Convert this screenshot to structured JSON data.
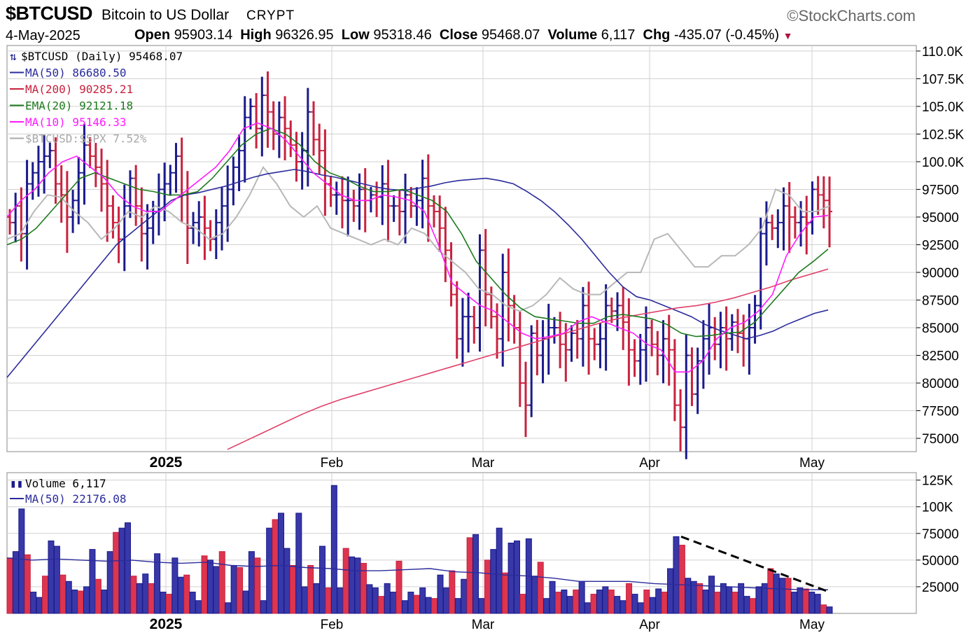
{
  "header": {
    "symbol": "$BTCUSD",
    "name": "Bitcoin to US Dollar",
    "exchange": "CRYPT",
    "brand": "©StockCharts.com",
    "date": "4-May-2025",
    "open_label": "Open",
    "open": "95903.14",
    "high_label": "High",
    "high": "96326.95",
    "low_label": "Low",
    "low": "95318.46",
    "close_label": "Close",
    "close": "95468.07",
    "volume_label": "Volume",
    "volume": "6,117",
    "chg_label": "Chg",
    "chg": "-435.07 (-0.45%)"
  },
  "colors": {
    "up": "#1a1a8c",
    "down": "#c8223e",
    "ma50": "#2b2b9c",
    "ma200": "#e0406a",
    "ema20": "#1e7a1e",
    "ma10": "#ff1aff",
    "ratio": "#b8b8b8",
    "grid": "#d0d0d0"
  },
  "legend_price": [
    {
      "text": "$BTCUSD (Daily) 95468.07",
      "color": "#000000",
      "icon": "candlestick-icon"
    },
    {
      "text": "MA(50) 86680.50",
      "color": "#2b2b9c"
    },
    {
      "text": "MA(200) 90285.21",
      "color": "#c8223e"
    },
    {
      "text": "EMA(20) 92121.18",
      "color": "#1e7a1e"
    },
    {
      "text": "MA(10) 95146.33",
      "color": "#ff1aff"
    },
    {
      "text": "$BTCUSD:$SPX 7.52%",
      "color": "#a8a8a8"
    }
  ],
  "legend_volume": [
    {
      "text": "Volume 6,117",
      "color": "#000000",
      "icon": "volume-bars-icon"
    },
    {
      "text": "MA(50) 22176.08",
      "color": "#2b2b9c"
    }
  ],
  "chart_data": [
    {
      "type": "line",
      "title": "$BTCUSD (Daily)",
      "y_ticks": [
        "110.0K",
        "107.5K",
        "105.0K",
        "102.5K",
        "100.0K",
        "97500",
        "95000",
        "92500",
        "90000",
        "87500",
        "85000",
        "82500",
        "80000",
        "77500",
        "75000"
      ],
      "x_ticks": [
        "2025",
        "Feb",
        "Mar",
        "Apr",
        "May"
      ],
      "ylim": [
        74000,
        110500
      ],
      "grid": true,
      "ohlc_close_approx": [
        94500,
        96000,
        93500,
        98000,
        99000,
        100000,
        100500,
        101000,
        98000,
        97000,
        95000,
        96500,
        99000,
        101500,
        100500,
        99500,
        98000,
        96000,
        94500,
        93000,
        96000,
        98500,
        96000,
        93500,
        94000,
        95500,
        97500,
        98000,
        99000,
        100500,
        97000,
        94000,
        94500,
        95000,
        94000,
        93000,
        94500,
        96000,
        97500,
        99500,
        101000,
        104000,
        105000,
        103000,
        106000,
        104500,
        102500,
        104000,
        103000,
        101500,
        100000,
        101000,
        104500,
        102000,
        101000,
        98000,
        97000,
        97000,
        96500,
        96500,
        96000,
        97500,
        96500,
        97000,
        96800,
        98000,
        96000,
        96000,
        95500,
        97000,
        96000,
        96500,
        98500,
        96000,
        95500,
        94000,
        92000,
        88000,
        84000,
        86000,
        86000,
        85000,
        92000,
        88000,
        86000,
        84000,
        90000,
        87000,
        85000,
        80000,
        78000,
        84500,
        82500,
        84000,
        85000,
        85000,
        83500,
        83000,
        84500,
        84000,
        87000,
        84000,
        83500,
        84000,
        87000,
        86500,
        87000,
        85500,
        83000,
        82000,
        83000,
        85000,
        83500,
        82500,
        84000,
        83000,
        78000,
        76000,
        82500,
        79000,
        82000,
        84000,
        85000,
        83500,
        85000,
        84000,
        85500,
        84500,
        84000,
        85000,
        87000,
        93500,
        94500,
        94000,
        94500,
        96000,
        95000,
        94500,
        95000,
        94500,
        97500,
        97000,
        96500,
        95500
      ],
      "series": [
        {
          "name": "MA(50)",
          "values": [
            80500,
            82000,
            83500,
            85000,
            86500,
            88000,
            89500,
            91000,
            92500,
            93500,
            94500,
            95500,
            96500,
            97000,
            97200,
            97500,
            97800,
            98200,
            98600,
            98900,
            99100,
            99300,
            99100,
            98800,
            98600,
            98300,
            98000,
            97700,
            97500,
            97400,
            97600,
            97800,
            98100,
            98300,
            98400,
            98500,
            98300,
            98000,
            97300,
            96500,
            95500,
            94300,
            93000,
            91500,
            90000,
            88700,
            87800,
            87500,
            87000,
            86500,
            86000,
            85300,
            84800,
            84400,
            84000,
            84300,
            84700,
            85300,
            85800,
            86300,
            86600
          ]
        },
        {
          "name": "MA(200)",
          "values": [
            74000,
            74800,
            75600,
            76400,
            77200,
            77900,
            78500,
            79000,
            79500,
            80000,
            80500,
            81000,
            81500,
            82000,
            82500,
            83000,
            83500,
            84000,
            84500,
            85000,
            85500,
            85900,
            86200,
            86500,
            86800,
            87000,
            87300,
            87700,
            88200,
            88700,
            89300,
            89800,
            90300
          ]
        },
        {
          "name": "EMA(20)",
          "values": [
            92500,
            93000,
            94000,
            95500,
            97000,
            98500,
            99000,
            98500,
            98000,
            97500,
            97300,
            97000,
            97000,
            97300,
            98500,
            100000,
            101500,
            102500,
            103000,
            102500,
            101500,
            100000,
            99000,
            98500,
            97800,
            97300,
            97300,
            97500,
            97000,
            96500,
            95500,
            93500,
            91000,
            89500,
            88000,
            86800,
            86000,
            85800,
            85600,
            85400,
            85400,
            86000,
            86200,
            86000,
            85800,
            85300,
            84500,
            84200,
            84300,
            84500,
            84600,
            85500,
            87000,
            88500,
            90000,
            91000,
            92100
          ]
        },
        {
          "name": "MA(10)",
          "values": [
            95000,
            96500,
            97500,
            99000,
            100000,
            100500,
            99500,
            98500,
            97000,
            96000,
            95500,
            95500,
            96500,
            97500,
            98500,
            99500,
            101000,
            103000,
            103500,
            103000,
            102000,
            100500,
            99000,
            98000,
            97000,
            96500,
            96500,
            97000,
            96800,
            96500,
            95500,
            92500,
            89000,
            88000,
            87000,
            86500,
            85500,
            84500,
            84000,
            84200,
            84500,
            85500,
            86000,
            85500,
            85000,
            84500,
            83500,
            83000,
            81000,
            81000,
            82000,
            84000,
            85000,
            85500,
            86500,
            88000,
            91500,
            93500,
            95000,
            95150
          ]
        },
        {
          "name": "$BTCUSD:$SPX",
          "values": [
            93000,
            93500,
            95500,
            97000,
            96800,
            95500,
            94500,
            93000,
            94000,
            95500,
            95000,
            96000,
            95500,
            94500,
            94000,
            93000,
            93500,
            95000,
            97000,
            99500,
            98000,
            96000,
            95000,
            96000,
            94000,
            93500,
            93000,
            92500,
            93000,
            92500,
            94000,
            93500,
            92000,
            91000,
            90000,
            88500,
            88000,
            87000,
            86500,
            87000,
            88000,
            89500,
            88500,
            88000,
            88000,
            89000,
            90000,
            90000,
            93000,
            93500,
            92000,
            90500,
            90500,
            91500,
            91500,
            92500,
            94000,
            97500,
            97000,
            95500,
            95500,
            96000
          ]
        }
      ]
    },
    {
      "type": "bar",
      "title": "Volume",
      "y_ticks": [
        "125K",
        "100K",
        "75000",
        "50000",
        "25000"
      ],
      "ylim": [
        0,
        125000
      ],
      "series": [
        {
          "name": "Volume",
          "values": [
            52000,
            58000,
            98000,
            55000,
            20000,
            15000,
            35000,
            68000,
            63000,
            36000,
            30000,
            22000,
            21000,
            25000,
            60000,
            32000,
            22000,
            58000,
            76000,
            80000,
            85000,
            35000,
            28000,
            37000,
            28000,
            56000,
            20000,
            18000,
            52000,
            34000,
            36000,
            20000,
            12000,
            54000,
            50000,
            44000,
            58000,
            10000,
            45000,
            43000,
            21000,
            58000,
            52000,
            12000,
            80000,
            88000,
            94000,
            61000,
            45000,
            94000,
            25000,
            45000,
            28000,
            63000,
            24000,
            120000,
            24000,
            61000,
            53000,
            52000,
            47000,
            27000,
            24000,
            16000,
            28000,
            20000,
            49000,
            12000,
            20000,
            17000,
            24000,
            15000,
            14000,
            36000,
            24000,
            40000,
            14000,
            32000,
            71000,
            74000,
            14000,
            50000,
            60000,
            80000,
            38000,
            66000,
            68000,
            18000,
            70000,
            35000,
            48000,
            14000,
            30000,
            20000,
            22000,
            16000,
            22000,
            30000,
            10000,
            18000,
            22000,
            25000,
            22000,
            16000,
            12000,
            28000,
            18000,
            10000,
            22000,
            15000,
            23000,
            20000,
            42000,
            72000,
            64000,
            33000,
            30000,
            28000,
            22000,
            35000,
            20000,
            28000,
            25000,
            20000,
            28000,
            16000,
            14000,
            25000,
            28000,
            42000,
            37000,
            33000,
            33000,
            20000,
            24000,
            23000,
            20000,
            18000,
            8000,
            6117
          ]
        },
        {
          "name": "MA(50)",
          "values": [
            52000,
            50000,
            51000,
            50000,
            49000,
            50000,
            48000,
            47000,
            48000,
            45000,
            44000,
            45000,
            43000,
            42000,
            40000,
            40000,
            41000,
            42000,
            39000,
            38000,
            36000,
            35000,
            33000,
            30000,
            30000,
            30000,
            28000,
            27000,
            26000,
            25000,
            24000,
            23000,
            22200,
            22176
          ]
        }
      ]
    }
  ]
}
